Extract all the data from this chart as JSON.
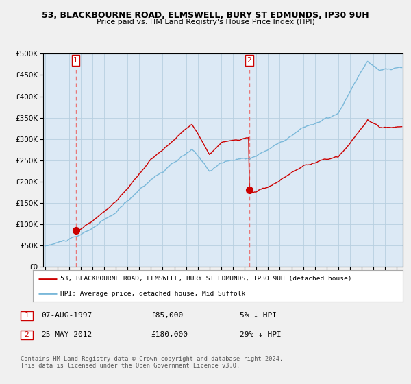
{
  "title": "53, BLACKBOURNE ROAD, ELMSWELL, BURY ST EDMUNDS, IP30 9UH",
  "subtitle": "Price paid vs. HM Land Registry's House Price Index (HPI)",
  "legend_line1": "53, BLACKBOURNE ROAD, ELMSWELL, BURY ST EDMUNDS, IP30 9UH (detached house)",
  "legend_line2": "HPI: Average price, detached house, Mid Suffolk",
  "sale1_label": "1",
  "sale1_date": "07-AUG-1997",
  "sale1_price": "£85,000",
  "sale1_hpi": "5% ↓ HPI",
  "sale1_year": 1997.58,
  "sale1_value": 85000,
  "sale2_label": "2",
  "sale2_date": "25-MAY-2012",
  "sale2_price": "£180,000",
  "sale2_hpi": "29% ↓ HPI",
  "sale2_year": 2012.38,
  "sale2_value": 180000,
  "hpi_color": "#7ab8d9",
  "sale_color": "#cc0000",
  "dashed_color": "#e87878",
  "background_color": "#f0f0f0",
  "plot_bg_color": "#dce9f5",
  "grid_color": "#b8cfe0",
  "footer": "Contains HM Land Registry data © Crown copyright and database right 2024.\nThis data is licensed under the Open Government Licence v3.0.",
  "ylim": [
    0,
    500000
  ],
  "yticks": [
    0,
    50000,
    100000,
    150000,
    200000,
    250000,
    300000,
    350000,
    400000,
    450000,
    500000
  ],
  "xlim_start": 1994.8,
  "xlim_end": 2025.5
}
